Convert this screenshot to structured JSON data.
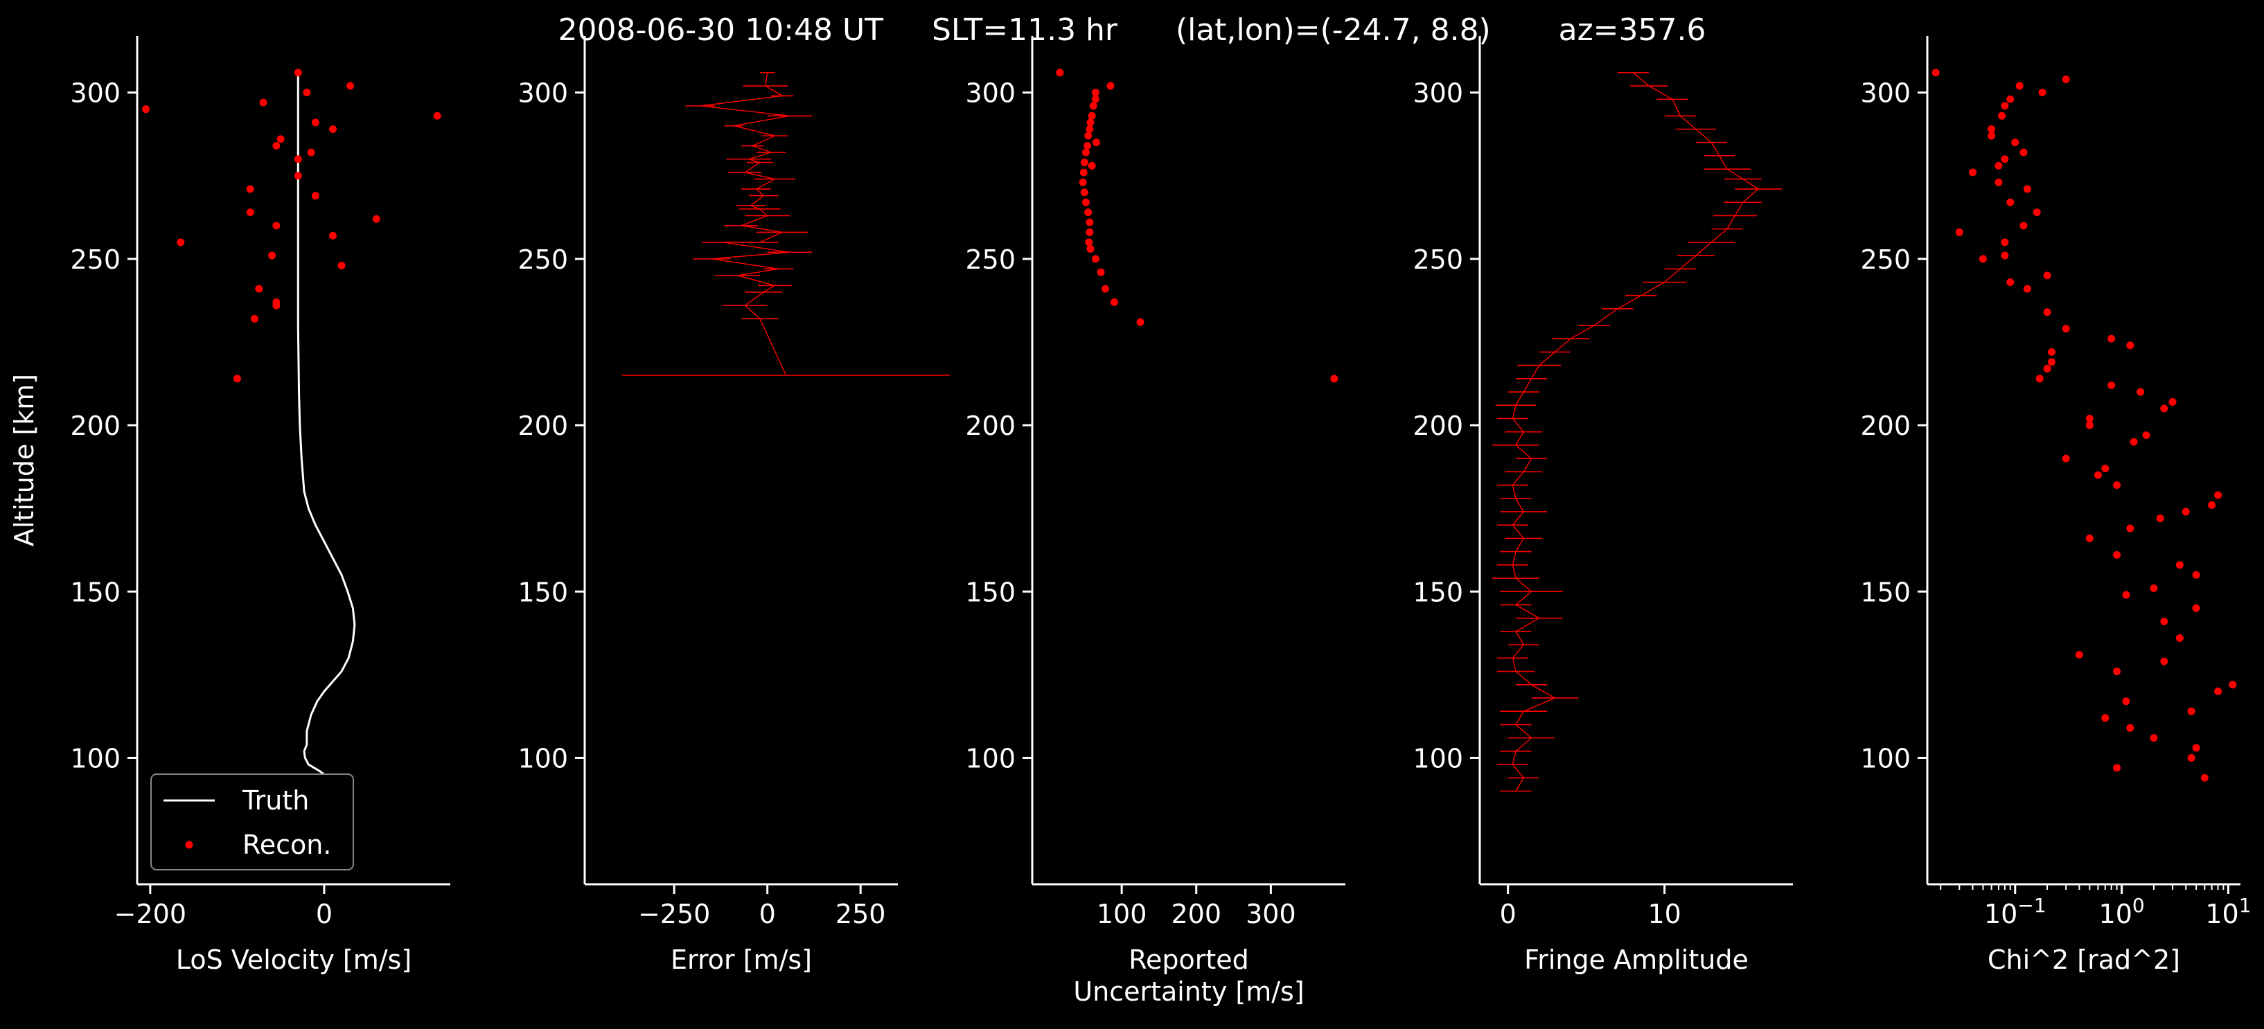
{
  "figure": {
    "title": "2008-06-30 10:48 UT     SLT=11.3 hr      (lat,lon)=(-24.7, 8.8)       az=357.6"
  },
  "colors": {
    "background": "#000000",
    "foreground": "#ffffff",
    "recon": "#ff0000",
    "truth": "#ffffff"
  },
  "chart_data": [
    {
      "type": "line",
      "panel": "los-velocity",
      "xlabel": "LoS Velocity [m/s]",
      "ylabel": "Altitude [km]",
      "xlim": [
        -215,
        145
      ],
      "ylim": [
        62,
        317
      ],
      "xticks": [
        -200,
        0
      ],
      "yticks": [
        100,
        150,
        200,
        250,
        300
      ],
      "legend": {
        "placement": "lower left",
        "entries": [
          "Truth",
          "Recon."
        ]
      },
      "series": [
        {
          "name": "Truth",
          "kind": "line",
          "x": [
            -30,
            -30,
            -30,
            -30,
            -30,
            -29,
            -28,
            -26,
            -23,
            -18,
            -10,
            0,
            10,
            20,
            27,
            33,
            35,
            33,
            28,
            20,
            10,
            0,
            -8,
            -15,
            -20,
            -20,
            -23,
            -22,
            -18,
            -5,
            10,
            20
          ],
          "y": [
            306,
            290,
            270,
            250,
            230,
            210,
            200,
            190,
            180,
            175,
            170,
            165,
            160,
            155,
            150,
            145,
            140,
            135,
            130,
            126,
            123,
            120,
            117,
            113,
            108,
            104,
            102,
            100,
            98,
            96,
            93,
            90
          ]
        },
        {
          "name": "Recon.",
          "kind": "scatter",
          "x": [
            -30,
            -205,
            -20,
            30,
            130,
            -70,
            -10,
            -50,
            -55,
            10,
            -15,
            -30,
            -85,
            -10,
            -85,
            -55,
            60,
            -165,
            10,
            -60,
            -55,
            20,
            -75,
            -55,
            -80,
            -100,
            -30
          ],
          "y": [
            306,
            295,
            300,
            302,
            293,
            297,
            291,
            286,
            284,
            289,
            282,
            280,
            271,
            269,
            264,
            260,
            262,
            255,
            257,
            251,
            236,
            248,
            241,
            237,
            232,
            214,
            275
          ]
        }
      ]
    },
    {
      "type": "scatter",
      "panel": "error",
      "xlabel": "Error [m/s]",
      "xlim": [
        -490,
        350
      ],
      "ylim": [
        62,
        317
      ],
      "xticks": [
        -250,
        0,
        250
      ],
      "yticks": [
        100,
        150,
        200,
        250,
        300
      ],
      "series": [
        {
          "name": "",
          "kind": "errorbar",
          "x": [
            0,
            -5,
            40,
            -180,
            60,
            -90,
            20,
            -40,
            10,
            -20,
            -60,
            20,
            -30,
            -10,
            -45,
            0,
            -70,
            40,
            -20,
            60,
            -150,
            30,
            -80,
            20,
            -10,
            -60,
            -20,
            50,
            -50,
            -20,
            -120
          ],
          "y": [
            306,
            302,
            299,
            296,
            293,
            290,
            287,
            284,
            282,
            279,
            276,
            274,
            271,
            269,
            266,
            263,
            260,
            258,
            255,
            252,
            250,
            247,
            245,
            242,
            240,
            236,
            232,
            215,
            280,
            265,
            255
          ],
          "xerr": [
            20,
            60,
            30,
            40,
            60,
            25,
            35,
            30,
            40,
            35,
            45,
            55,
            40,
            40,
            40,
            60,
            45,
            70,
            50,
            60,
            50,
            40,
            60,
            45,
            50,
            60,
            50,
            440,
            60,
            55,
            55
          ]
        }
      ]
    },
    {
      "type": "scatter",
      "panel": "reported-uncertainty",
      "xlabel": "Reported\nUncertainty [m/s]",
      "xlim": [
        -20,
        400
      ],
      "ylim": [
        62,
        317
      ],
      "xticks": [
        100,
        200,
        300
      ],
      "yticks": [
        100,
        150,
        200,
        250,
        300
      ],
      "series": [
        {
          "name": "",
          "kind": "scatter",
          "x": [
            17,
            85,
            65,
            65,
            62,
            60,
            58,
            57,
            55,
            54,
            52,
            50,
            49,
            48,
            50,
            52,
            55,
            57,
            57,
            56,
            58,
            65,
            72,
            78,
            90,
            125,
            385,
            66,
            60
          ],
          "y": [
            306,
            302,
            300,
            298,
            296,
            293,
            291,
            289,
            287,
            284,
            282,
            279,
            276,
            273,
            270,
            267,
            264,
            261,
            258,
            255,
            253,
            250,
            246,
            241,
            237,
            231,
            214,
            285,
            278
          ]
        }
      ]
    },
    {
      "type": "line",
      "panel": "fringe-amplitude",
      "xlabel": "Fringe Amplitude",
      "xlim": [
        -1.8,
        18.2
      ],
      "ylim": [
        62,
        317
      ],
      "xticks": [
        0,
        10
      ],
      "yticks": [
        100,
        150,
        200,
        250,
        300
      ],
      "series": [
        {
          "name": "",
          "kind": "errorbar-line",
          "x": [
            8,
            9,
            10.5,
            11,
            12,
            13,
            13.5,
            14,
            15,
            16,
            15,
            14.5,
            14,
            13,
            12,
            11,
            10,
            8.5,
            7,
            5.5,
            4,
            3,
            2,
            1.5,
            1,
            0.5,
            0.3,
            1,
            0.5,
            1.5,
            1,
            0.3,
            0.5,
            1,
            0.3,
            1,
            0.5,
            0.3,
            0.5,
            1.5,
            0.5,
            2,
            0.5,
            1,
            0.3,
            0.5,
            1.5,
            3,
            1,
            0.5,
            1.5,
            0.5,
            0.3,
            1,
            0.5
          ],
          "y": [
            306,
            302,
            298,
            293,
            289,
            285,
            281,
            277,
            274,
            271,
            267,
            263,
            259,
            255,
            251,
            247,
            243,
            239,
            235,
            230,
            226,
            222,
            218,
            214,
            210,
            206,
            202,
            198,
            194,
            190,
            186,
            182,
            178,
            174,
            170,
            166,
            162,
            158,
            154,
            150,
            146,
            142,
            138,
            134,
            130,
            126,
            122,
            118,
            114,
            110,
            106,
            102,
            98,
            94,
            90
          ],
          "xerr": [
            1,
            1.2,
            1,
            1,
            1.3,
            1,
            1,
            1.5,
            1.2,
            1.5,
            1.2,
            1.4,
            1,
            1.5,
            1.2,
            1,
            1.4,
            1,
            1,
            1,
            1.2,
            1,
            1.4,
            1,
            1,
            1.3,
            1,
            1.2,
            1.5,
            1,
            1.2,
            1,
            1,
            1.5,
            1,
            1.2,
            1,
            1,
            1.5,
            2,
            1,
            1.5,
            1,
            1,
            1,
            1.2,
            1,
            1.5,
            1.5,
            1,
            1.5,
            1,
            1,
            1,
            1
          ]
        }
      ]
    },
    {
      "type": "scatter",
      "panel": "chi2",
      "xlabel": "Chi^2 [rad^2]",
      "xscale": "log",
      "xlim": [
        0.015,
        13
      ],
      "ylim": [
        62,
        317
      ],
      "xticks": [
        0.1,
        1,
        10
      ],
      "xticklabels": [
        "10",
        "10",
        "10"
      ],
      "xtickexponents": [
        "−1",
        "0",
        "1"
      ],
      "yticks": [
        100,
        150,
        200,
        250,
        300
      ],
      "series": [
        {
          "name": "",
          "kind": "scatter",
          "x": [
            0.018,
            0.11,
            0.3,
            0.18,
            0.09,
            0.08,
            0.075,
            0.06,
            0.06,
            0.1,
            0.12,
            0.08,
            0.04,
            0.07,
            0.07,
            0.13,
            0.09,
            0.16,
            0.03,
            0.12,
            0.08,
            0.08,
            0.2,
            0.05,
            0.09,
            0.13,
            0.2,
            0.3,
            0.22,
            0.22,
            0.2,
            0.8,
            1.2,
            0.17,
            0.8,
            1.5,
            3,
            2.5,
            0.5,
            0.5,
            1.7,
            1.3,
            0.3,
            0.7,
            0.6,
            0.9,
            4,
            2.3,
            7,
            1.2,
            0.5,
            0.9,
            8,
            3.5,
            5,
            1.1,
            2,
            5,
            2.5,
            3.5,
            2.5,
            0.4,
            0.9,
            11,
            8,
            1.1,
            0.7,
            4.5,
            1.2,
            2,
            5,
            4.5,
            6,
            0.9
          ],
          "y": [
            306,
            302,
            304,
            300,
            298,
            296,
            293,
            289,
            287,
            285,
            282,
            280,
            276,
            278,
            273,
            271,
            267,
            264,
            258,
            260,
            255,
            251,
            245,
            250,
            243,
            241,
            234,
            229,
            222,
            219,
            217,
            226,
            224,
            214,
            212,
            210,
            207,
            205,
            202,
            200,
            197,
            195,
            190,
            187,
            185,
            182,
            174,
            172,
            176,
            169,
            166,
            161,
            179,
            158,
            155,
            149,
            151,
            145,
            141,
            136,
            129,
            131,
            126,
            122,
            120,
            117,
            112,
            114,
            109,
            106,
            103,
            100,
            94,
            97
          ]
        }
      ]
    }
  ]
}
